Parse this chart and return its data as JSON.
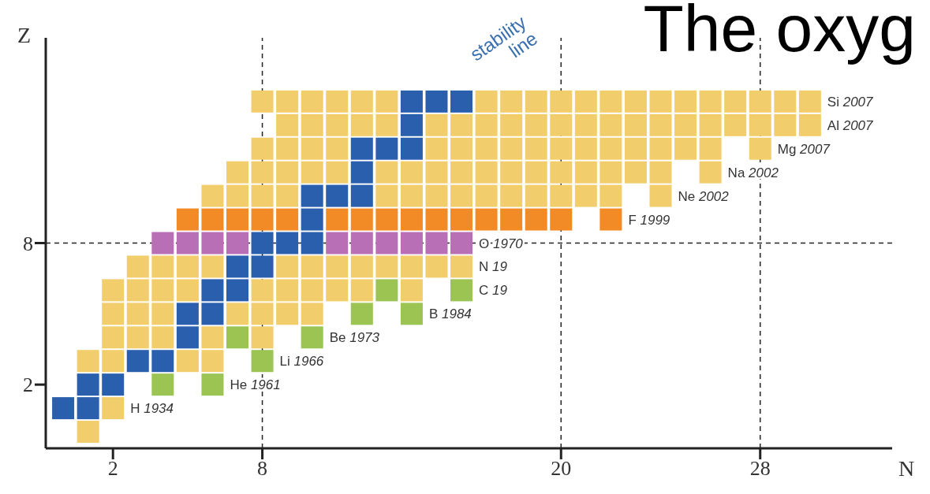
{
  "chart_data": {
    "type": "scatter",
    "title": "The oxyg",
    "xlabel": "N",
    "ylabel": "Z",
    "xlim": [
      -0.7,
      33.3
    ],
    "ylim": [
      -0.7,
      16.7
    ],
    "xticks": [
      2,
      8,
      20,
      28
    ],
    "yticks": [
      2,
      8
    ],
    "marker": "square",
    "series": [
      {
        "color": "#f2cd6b",
        "x": [
          1,
          2,
          1,
          2,
          5,
          6,
          2,
          3,
          4,
          6,
          8,
          2,
          3,
          4,
          7,
          8,
          9,
          10,
          2,
          3,
          4,
          5,
          8,
          9,
          10,
          11,
          12,
          14,
          3,
          4,
          5,
          6,
          9,
          10,
          11,
          12,
          13,
          14,
          15,
          16,
          6,
          7,
          8,
          9,
          13,
          14,
          15,
          16,
          17,
          18,
          19,
          20,
          21,
          22,
          24,
          7,
          8,
          9,
          10,
          11,
          13,
          14,
          15,
          16,
          17,
          18,
          19,
          20,
          21,
          22,
          23,
          24,
          26,
          8,
          9,
          10,
          11,
          15,
          16,
          17,
          18,
          19,
          20,
          21,
          22,
          23,
          24,
          25,
          26,
          28,
          9,
          10,
          11,
          12,
          13,
          15,
          16,
          17,
          18,
          19,
          20,
          21,
          22,
          23,
          24,
          25,
          26,
          27,
          28,
          29,
          30,
          8,
          9,
          10,
          11,
          12,
          13,
          17,
          18,
          19,
          20,
          21,
          22,
          23,
          24,
          25,
          26,
          27,
          28,
          29,
          30
        ],
        "values": [
          0,
          1,
          3,
          3,
          3,
          3,
          4,
          4,
          4,
          4,
          4,
          5,
          5,
          5,
          5,
          5,
          5,
          5,
          6,
          6,
          6,
          6,
          6,
          6,
          6,
          6,
          6,
          6,
          7,
          7,
          7,
          7,
          7,
          7,
          7,
          7,
          7,
          7,
          7,
          7,
          10,
          10,
          10,
          10,
          10,
          10,
          10,
          10,
          10,
          10,
          10,
          10,
          10,
          10,
          10,
          11,
          11,
          11,
          11,
          11,
          11,
          11,
          11,
          11,
          11,
          11,
          11,
          11,
          11,
          11,
          11,
          11,
          11,
          12,
          12,
          12,
          12,
          12,
          12,
          12,
          12,
          12,
          12,
          12,
          12,
          12,
          12,
          12,
          12,
          12,
          13,
          13,
          13,
          13,
          13,
          13,
          13,
          13,
          13,
          13,
          13,
          13,
          13,
          13,
          13,
          13,
          13,
          13,
          13,
          13,
          13,
          14,
          14,
          14,
          14,
          14,
          14,
          14,
          14,
          14,
          14,
          14,
          14,
          14,
          14,
          14,
          14,
          14,
          14,
          14,
          14
        ]
      },
      {
        "color": "#2a5fad",
        "x": [
          0,
          1,
          1,
          2,
          3,
          4,
          5,
          5,
          6,
          6,
          7,
          7,
          8,
          8,
          9,
          10,
          10,
          10,
          11,
          12,
          12,
          12,
          13,
          14,
          14,
          14,
          15,
          16
        ],
        "values": [
          1,
          1,
          2,
          2,
          3,
          3,
          4,
          5,
          5,
          6,
          6,
          7,
          7,
          8,
          8,
          8,
          9,
          10,
          10,
          10,
          11,
          12,
          12,
          12,
          13,
          14,
          14,
          14
        ]
      },
      {
        "color": "#9bc453",
        "x": [
          4,
          6,
          8,
          7,
          10,
          12,
          14,
          13,
          16
        ],
        "values": [
          2,
          2,
          3,
          4,
          4,
          5,
          5,
          6,
          6
        ]
      },
      {
        "color": "#b86fb5",
        "x": [
          4,
          5,
          6,
          7,
          11,
          12,
          13,
          14,
          15,
          16
        ],
        "values": [
          8,
          8,
          8,
          8,
          8,
          8,
          8,
          8,
          8,
          8
        ]
      },
      {
        "color": "#f28a26",
        "x": [
          5,
          6,
          7,
          8,
          9,
          11,
          12,
          13,
          14,
          15,
          16,
          17,
          18,
          19,
          20,
          22
        ],
        "values": [
          9,
          9,
          9,
          9,
          9,
          9,
          9,
          9,
          9,
          9,
          9,
          9,
          9,
          9,
          9,
          9
        ]
      }
    ],
    "ref_lines": [
      {
        "axis": "x",
        "value": 8,
        "color": "#222222",
        "line_style": "dashed"
      },
      {
        "axis": "x",
        "value": 20,
        "color": "#222222",
        "line_style": "dashed"
      },
      {
        "axis": "x",
        "value": 28,
        "color": "#222222",
        "line_style": "dashed"
      },
      {
        "axis": "y",
        "value": 8,
        "color": "#222222",
        "line_style": "dashed"
      }
    ],
    "annotations": [
      "stability line",
      {
        "text": "H 1934",
        "x": 2,
        "y": 1
      },
      {
        "text": "He 1961",
        "x": 6,
        "y": 2
      },
      {
        "text": "Li 1966",
        "x": 8,
        "y": 3
      },
      {
        "text": "Be 1973",
        "x": 10,
        "y": 4
      },
      {
        "text": "B 1984",
        "x": 14,
        "y": 5
      },
      {
        "text": "C 19",
        "x": 16,
        "y": 6
      },
      {
        "text": "N 19",
        "x": 16,
        "y": 7
      },
      {
        "text": "O 1970",
        "x": 16,
        "y": 8
      },
      {
        "text": "F 1999",
        "x": 22,
        "y": 9
      },
      {
        "text": "Ne 2002",
        "x": 24,
        "y": 10
      },
      {
        "text": "Na 2002",
        "x": 26,
        "y": 11
      },
      {
        "text": "Mg 2007",
        "x": 28,
        "y": 12
      },
      {
        "text": "Al 2007",
        "x": 30,
        "y": 13
      },
      {
        "text": "Si 2007",
        "x": 30,
        "y": 14
      }
    ]
  }
}
